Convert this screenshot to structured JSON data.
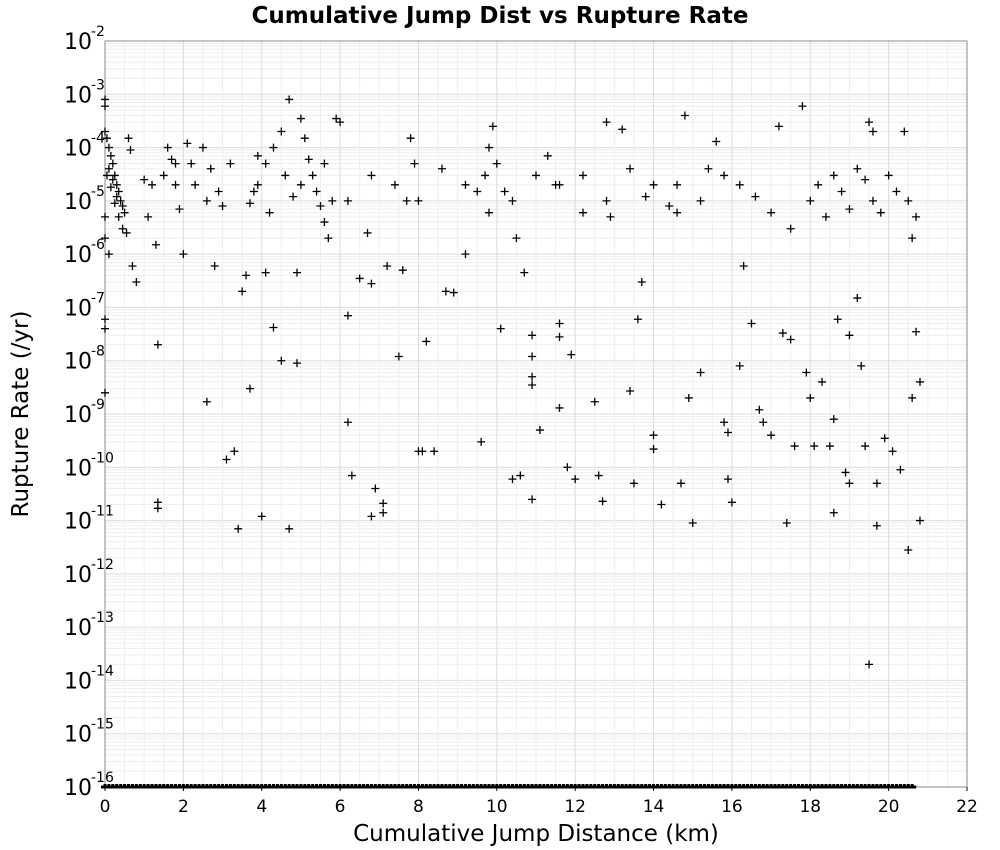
{
  "chart_data": {
    "type": "scatter",
    "title": "Cumulative Jump Dist vs Rupture Rate",
    "xlabel": "Cumulative Jump Distance (km)",
    "ylabel": "Rupture Rate (/yr)",
    "xlim": [
      0,
      22
    ],
    "ylim": [
      1e-16,
      0.01
    ],
    "yscale": "log",
    "grid": true,
    "marker": "+",
    "x_ticks": [
      "0",
      "2",
      "4",
      "6",
      "8",
      "10",
      "12",
      "14",
      "16",
      "18",
      "20",
      "22"
    ],
    "y_ticks": [
      {
        "base": "10",
        "exp": "-2"
      },
      {
        "base": "10",
        "exp": "-3"
      },
      {
        "base": "10",
        "exp": "-4"
      },
      {
        "base": "10",
        "exp": "-5"
      },
      {
        "base": "10",
        "exp": "-6"
      },
      {
        "base": "10",
        "exp": "-7"
      },
      {
        "base": "10",
        "exp": "-8"
      },
      {
        "base": "10",
        "exp": "-9"
      },
      {
        "base": "10",
        "exp": "-10"
      },
      {
        "base": "10",
        "exp": "-11"
      },
      {
        "base": "10",
        "exp": "-12"
      },
      {
        "base": "10",
        "exp": "-13"
      },
      {
        "base": "10",
        "exp": "-14"
      },
      {
        "base": "10",
        "exp": "-15"
      },
      {
        "base": "10",
        "exp": "-16"
      }
    ],
    "points": [
      [
        0.0,
        0.0008
      ],
      [
        0.0,
        0.0006
      ],
      [
        0.0,
        0.0002
      ],
      [
        0.05,
        0.00015
      ],
      [
        0.1,
        0.0001
      ],
      [
        0.15,
        7e-05
      ],
      [
        0.2,
        5e-05
      ],
      [
        0.25,
        3e-05
      ],
      [
        0.3,
        2e-05
      ],
      [
        0.35,
        1.5e-05
      ],
      [
        0.4,
        1e-05
      ],
      [
        0.45,
        8e-06
      ],
      [
        0.5,
        6e-06
      ],
      [
        0.1,
        4e-05
      ],
      [
        0.2,
        2.5e-05
      ],
      [
        0.3,
        1.2e-05
      ],
      [
        0.05,
        3e-05
      ],
      [
        0.15,
        1.8e-05
      ],
      [
        0.25,
        9e-06
      ],
      [
        0.35,
        5e-06
      ],
      [
        0.45,
        3e-06
      ],
      [
        0.55,
        2.5e-06
      ],
      [
        0.6,
        0.00015
      ],
      [
        0.65,
        9e-05
      ],
      [
        0.0,
        5e-06
      ],
      [
        0.0,
        2e-06
      ],
      [
        0.0,
        6e-08
      ],
      [
        0.0,
        4e-08
      ],
      [
        0.0,
        2.5e-09
      ],
      [
        0.1,
        1e-06
      ],
      [
        0.8,
        3e-07
      ],
      [
        0.7,
        6e-07
      ],
      [
        1.0,
        2.5e-05
      ],
      [
        1.1,
        5e-06
      ],
      [
        1.3,
        1.5e-06
      ],
      [
        1.35,
        2e-08
      ],
      [
        1.35,
        2.2e-11
      ],
      [
        1.35,
        1.7e-11
      ],
      [
        1.5,
        3e-05
      ],
      [
        1.6,
        0.0001
      ],
      [
        1.7,
        6e-05
      ],
      [
        1.8,
        2e-05
      ],
      [
        1.9,
        7e-06
      ],
      [
        2.0,
        1e-06
      ],
      [
        2.1,
        0.00012
      ],
      [
        2.2,
        5e-05
      ],
      [
        2.3,
        2e-05
      ],
      [
        2.6,
        1.7e-09
      ],
      [
        2.8,
        6e-07
      ],
      [
        2.5,
        0.0001
      ],
      [
        2.7,
        4e-05
      ],
      [
        2.9,
        1.5e-05
      ],
      [
        3.0,
        8e-06
      ],
      [
        3.1,
        1.4e-10
      ],
      [
        3.3,
        2e-10
      ],
      [
        3.4,
        7e-12
      ],
      [
        3.5,
        2e-07
      ],
      [
        3.6,
        4e-07
      ],
      [
        3.7,
        3e-09
      ],
      [
        3.8,
        1.5e-05
      ],
      [
        3.9,
        7e-05
      ],
      [
        4.0,
        1.2e-11
      ],
      [
        4.1,
        4.5e-07
      ],
      [
        4.3,
        4.2e-08
      ],
      [
        4.5,
        1e-08
      ],
      [
        4.7,
        0.0008
      ],
      [
        4.7,
        7e-12
      ],
      [
        4.9,
        9e-09
      ],
      [
        4.9,
        4.5e-07
      ],
      [
        5.0,
        0.00035
      ],
      [
        5.1,
        0.00015
      ],
      [
        5.2,
        6e-05
      ],
      [
        5.3,
        3e-05
      ],
      [
        5.4,
        1.5e-05
      ],
      [
        5.5,
        8e-06
      ],
      [
        5.6,
        4e-06
      ],
      [
        5.7,
        2e-06
      ],
      [
        5.8,
        1e-05
      ],
      [
        5.9,
        0.00035
      ],
      [
        6.0,
        0.0003
      ],
      [
        3.9,
        2e-05
      ],
      [
        4.1,
        5e-05
      ],
      [
        4.3,
        0.0001
      ],
      [
        4.5,
        0.0002
      ],
      [
        4.6,
        3e-05
      ],
      [
        4.8,
        1.2e-05
      ],
      [
        4.2,
        6e-06
      ],
      [
        3.7,
        9e-06
      ],
      [
        6.2,
        7e-08
      ],
      [
        6.2,
        7e-10
      ],
      [
        6.3,
        7e-11
      ],
      [
        6.5,
        3.5e-07
      ],
      [
        6.7,
        2.5e-06
      ],
      [
        6.8,
        2.8e-07
      ],
      [
        6.9,
        4e-11
      ],
      [
        6.8,
        1.2e-11
      ],
      [
        7.1,
        2.1e-11
      ],
      [
        7.1,
        1.4e-11
      ],
      [
        7.2,
        6e-07
      ],
      [
        7.5,
        1.2e-08
      ],
      [
        7.6,
        5e-07
      ],
      [
        7.7,
        1e-05
      ],
      [
        7.8,
        0.00015
      ],
      [
        7.9,
        5e-05
      ],
      [
        8.0,
        2e-10
      ],
      [
        8.1,
        2e-10
      ],
      [
        8.2,
        2.3e-08
      ],
      [
        8.4,
        2e-10
      ],
      [
        8.7,
        2e-07
      ],
      [
        8.9,
        1.9e-07
      ],
      [
        9.2,
        1e-06
      ],
      [
        9.5,
        1.5e-05
      ],
      [
        9.6,
        3e-10
      ],
      [
        9.7,
        3e-05
      ],
      [
        9.8,
        0.0001
      ],
      [
        9.9,
        0.00025
      ],
      [
        10.0,
        5e-05
      ],
      [
        10.1,
        4e-08
      ],
      [
        10.2,
        1.5e-05
      ],
      [
        10.4,
        6e-11
      ],
      [
        10.5,
        2e-06
      ],
      [
        10.6,
        7e-11
      ],
      [
        10.7,
        4.5e-07
      ],
      [
        10.9,
        3e-08
      ],
      [
        10.9,
        1.2e-08
      ],
      [
        10.9,
        5e-09
      ],
      [
        10.9,
        3.5e-09
      ],
      [
        10.9,
        2.5e-11
      ],
      [
        11.1,
        5e-10
      ],
      [
        11.3,
        7e-05
      ],
      [
        11.5,
        2e-05
      ],
      [
        11.6,
        5e-08
      ],
      [
        11.6,
        2.8e-08
      ],
      [
        11.6,
        1.3e-09
      ],
      [
        11.8,
        1e-10
      ],
      [
        11.9,
        1.3e-08
      ],
      [
        12.0,
        6e-11
      ],
      [
        12.2,
        3e-05
      ],
      [
        12.5,
        1.7e-09
      ],
      [
        12.6,
        7e-11
      ],
      [
        12.7,
        2.3e-11
      ],
      [
        12.8,
        0.0003
      ],
      [
        12.9,
        5e-06
      ],
      [
        13.2,
        0.00022
      ],
      [
        13.4,
        2.7e-09
      ],
      [
        13.5,
        5e-11
      ],
      [
        13.6,
        6e-08
      ],
      [
        13.7,
        3e-07
      ],
      [
        13.8,
        1.2e-05
      ],
      [
        14.0,
        4e-10
      ],
      [
        14.0,
        2.2e-10
      ],
      [
        14.2,
        2e-11
      ],
      [
        14.4,
        8e-06
      ],
      [
        14.6,
        2e-05
      ],
      [
        14.7,
        5e-11
      ],
      [
        14.8,
        0.0004
      ],
      [
        14.9,
        2e-09
      ],
      [
        15.0,
        9e-12
      ],
      [
        15.2,
        6e-09
      ],
      [
        15.4,
        4e-05
      ],
      [
        15.6,
        0.00013
      ],
      [
        15.8,
        7e-10
      ],
      [
        15.9,
        4.5e-10
      ],
      [
        15.9,
        6e-11
      ],
      [
        16.0,
        2.2e-11
      ],
      [
        16.2,
        8e-09
      ],
      [
        16.3,
        6e-07
      ],
      [
        16.5,
        5e-08
      ],
      [
        16.7,
        1.2e-09
      ],
      [
        16.8,
        7e-10
      ],
      [
        17.0,
        4e-10
      ],
      [
        17.2,
        0.00025
      ],
      [
        17.3,
        3.3e-08
      ],
      [
        17.4,
        9e-12
      ],
      [
        17.5,
        2.5e-08
      ],
      [
        17.6,
        2.5e-10
      ],
      [
        17.8,
        0.0006
      ],
      [
        17.9,
        6e-09
      ],
      [
        18.0,
        2e-09
      ],
      [
        18.1,
        2.5e-10
      ],
      [
        18.3,
        4e-09
      ],
      [
        18.5,
        2.5e-10
      ],
      [
        18.6,
        8e-10
      ],
      [
        18.6,
        1.4e-11
      ],
      [
        18.7,
        6e-08
      ],
      [
        18.9,
        8e-11
      ],
      [
        19.0,
        3e-08
      ],
      [
        19.0,
        5e-11
      ],
      [
        19.2,
        1.5e-07
      ],
      [
        19.3,
        8e-09
      ],
      [
        19.4,
        2.5e-10
      ],
      [
        19.5,
        2e-14
      ],
      [
        19.5,
        0.0003
      ],
      [
        19.6,
        0.0002
      ],
      [
        19.7,
        5e-11
      ],
      [
        19.7,
        8e-12
      ],
      [
        19.9,
        3.5e-10
      ],
      [
        20.1,
        2e-10
      ],
      [
        20.3,
        9e-11
      ],
      [
        20.4,
        0.0002
      ],
      [
        20.5,
        2.8e-12
      ],
      [
        20.6,
        2e-09
      ],
      [
        20.7,
        3.5e-08
      ],
      [
        20.8,
        4e-09
      ],
      [
        20.8,
        1e-11
      ],
      [
        20.6,
        2e-06
      ],
      [
        20.7,
        5e-06
      ],
      [
        20.5,
        1e-05
      ],
      [
        18.0,
        1e-05
      ],
      [
        18.2,
        2e-05
      ],
      [
        18.4,
        5e-06
      ],
      [
        18.6,
        3e-05
      ],
      [
        18.8,
        1.5e-05
      ],
      [
        19.0,
        7e-06
      ],
      [
        19.2,
        4e-05
      ],
      [
        19.4,
        2.5e-05
      ],
      [
        19.6,
        1e-05
      ],
      [
        19.8,
        6e-06
      ],
      [
        20.0,
        3e-05
      ],
      [
        20.2,
        1.5e-05
      ],
      [
        17.5,
        3e-06
      ],
      [
        17.0,
        6e-06
      ],
      [
        16.6,
        1.2e-05
      ],
      [
        16.2,
        2e-05
      ],
      [
        15.8,
        3e-05
      ],
      [
        15.2,
        1e-05
      ],
      [
        14.6,
        6e-06
      ],
      [
        14.0,
        2e-05
      ],
      [
        13.4,
        4e-05
      ],
      [
        12.8,
        1e-05
      ],
      [
        12.2,
        6e-06
      ],
      [
        11.6,
        2e-05
      ],
      [
        11.0,
        3e-05
      ],
      [
        10.4,
        1e-05
      ],
      [
        9.8,
        6e-06
      ],
      [
        9.2,
        2e-05
      ],
      [
        8.6,
        4e-05
      ],
      [
        8.0,
        1e-05
      ],
      [
        7.4,
        2e-05
      ],
      [
        6.8,
        3e-05
      ],
      [
        6.2,
        1e-05
      ],
      [
        5.6,
        5e-05
      ],
      [
        5.0,
        2e-05
      ],
      [
        3.2,
        5e-05
      ],
      [
        2.6,
        1e-05
      ],
      [
        1.8,
        5e-05
      ],
      [
        1.2,
        2e-05
      ]
    ]
  }
}
